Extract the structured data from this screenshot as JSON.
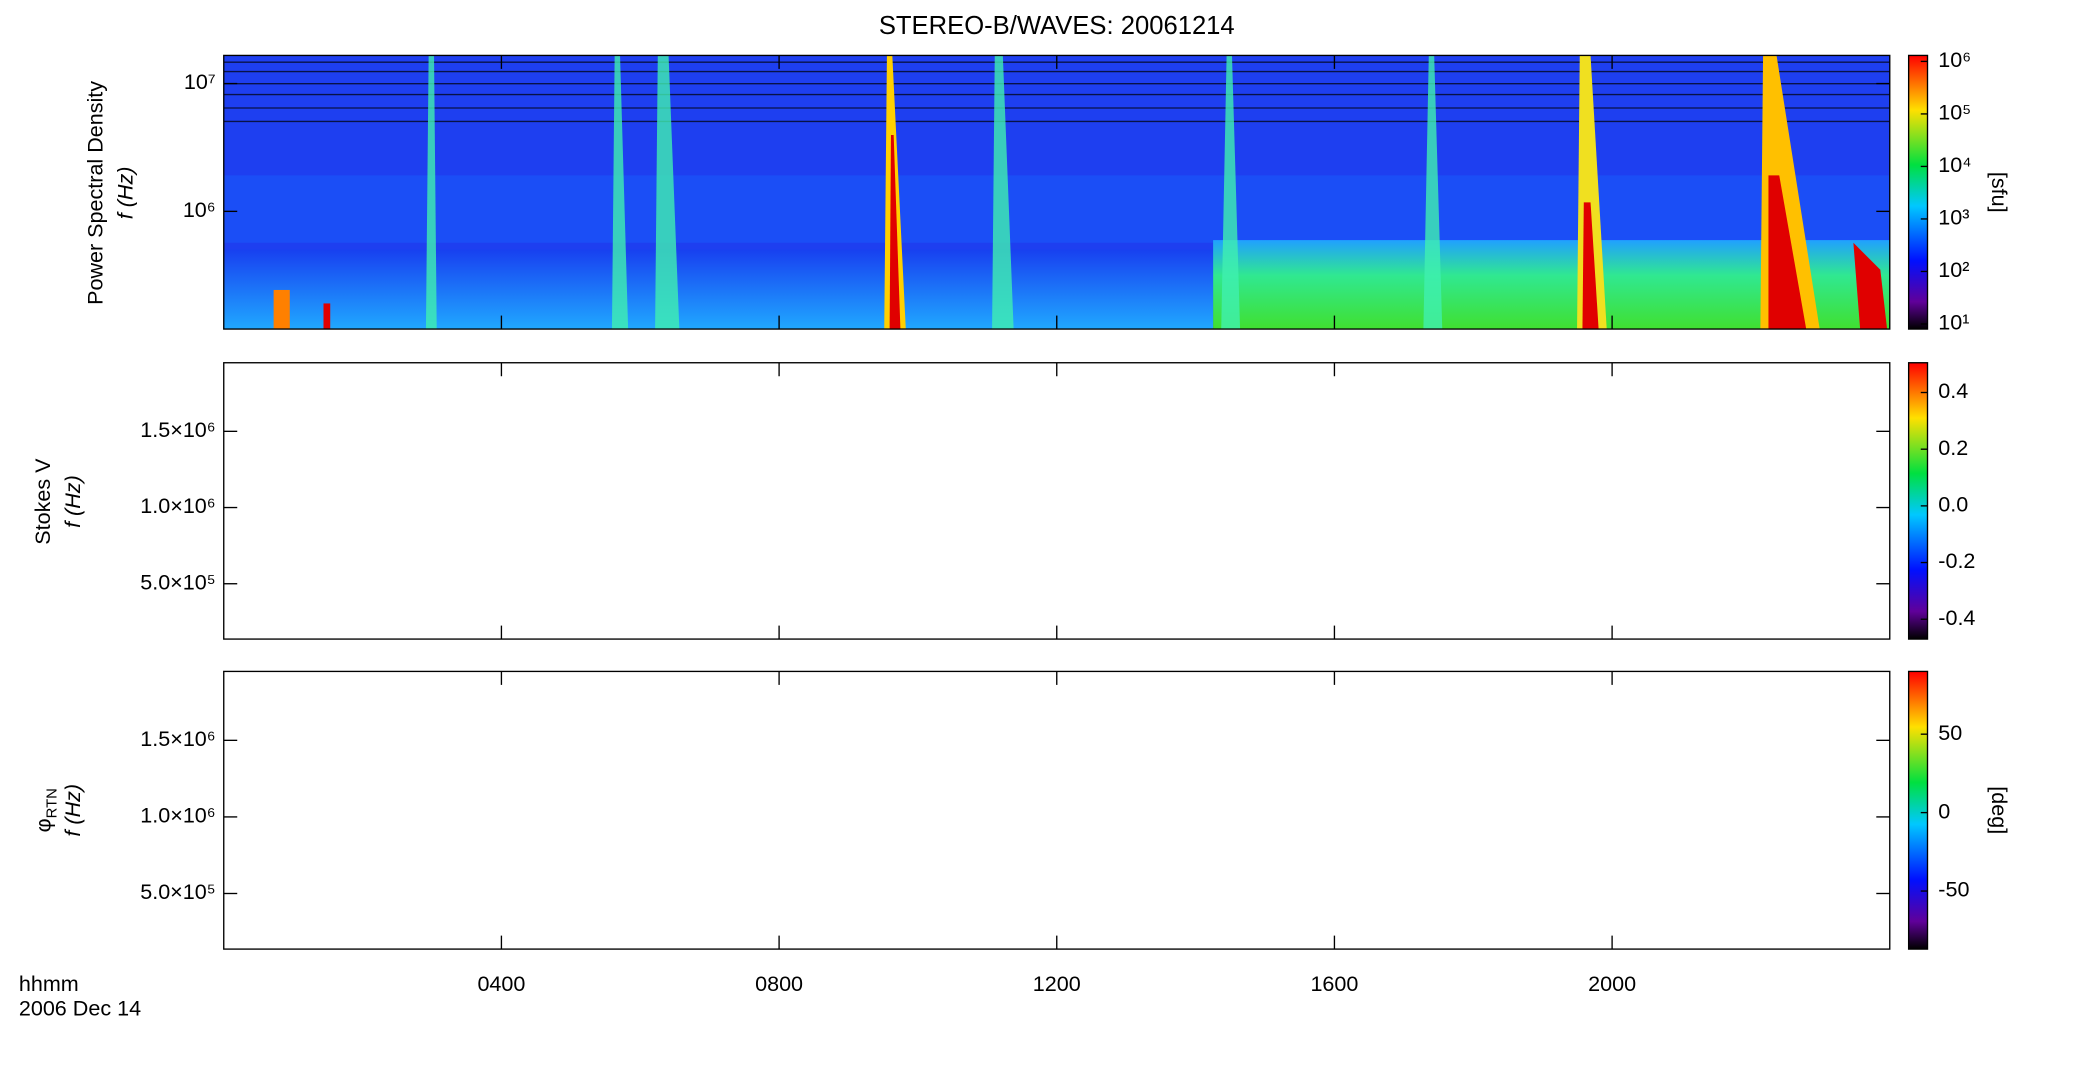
{
  "chart_data": [
    {
      "type": "heatmap",
      "title": "STEREO-B/WAVES: 20061214",
      "ylabel": "Power Spectral Density",
      "ylabel2": "f (Hz)",
      "ylog": true,
      "ylim": [
        120000,
        16600000
      ],
      "yticks": [
        {
          "value": 1000000,
          "label": "10⁶"
        },
        {
          "value": 10000000,
          "label": "10⁷"
        }
      ],
      "colorbar": {
        "log": true,
        "lim": [
          8,
          1300000
        ],
        "label": "[sfu]",
        "ticks": [
          {
            "value": 10,
            "label": "10¹"
          },
          {
            "value": 100,
            "label": "10²"
          },
          {
            "value": 1000,
            "label": "10³"
          },
          {
            "value": 10000,
            "label": "10⁴"
          },
          {
            "value": 100000,
            "label": "10⁵"
          },
          {
            "value": 1000000,
            "label": "10⁶"
          }
        ]
      }
    },
    {
      "type": "heatmap",
      "ylabel": "Stokes V",
      "ylabel2": "f (Hz)",
      "ylog": false,
      "ylim": [
        137000,
        1950000
      ],
      "yticks": [
        {
          "value": 500000,
          "label": "5.0×10⁵"
        },
        {
          "value": 1000000,
          "label": "1.0×10⁶"
        },
        {
          "value": 1500000,
          "label": "1.5×10⁶"
        }
      ],
      "colorbar": {
        "log": false,
        "lim": [
          -0.47,
          0.505
        ],
        "ticks": [
          -0.4,
          -0.2,
          {
            "value": 0,
            "label": "0.0"
          },
          0.2,
          0.4
        ]
      }
    },
    {
      "type": "heatmap",
      "ylabel": "φ",
      "ylabel_subscript": "RTN",
      "ylabel2": "f (Hz)",
      "ylog": false,
      "ylim": [
        137000,
        1950000
      ],
      "yticks": [
        {
          "value": 500000,
          "label": "5.0×10⁵"
        },
        {
          "value": 1000000,
          "label": "1.0×10⁶"
        },
        {
          "value": 1500000,
          "label": "1.5×10⁶"
        }
      ],
      "colorbar": {
        "log": false,
        "lim": [
          -87,
          90
        ],
        "label": "[deg]",
        "ticks": [
          -50,
          0,
          50
        ]
      },
      "xlabel": "hhmm",
      "date": "2006 Dec 14",
      "xlim": [
        0,
        24
      ],
      "xticks": [
        {
          "value": 4,
          "label": "0400"
        },
        {
          "value": 8,
          "label": "0800"
        },
        {
          "value": 12,
          "label": "1200"
        },
        {
          "value": 16,
          "label": "1600"
        },
        {
          "value": 20,
          "label": "2000"
        }
      ]
    }
  ]
}
